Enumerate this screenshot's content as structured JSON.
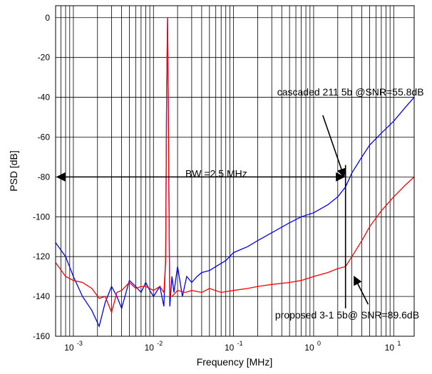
{
  "chart_data": {
    "type": "line",
    "xlabel": "Frequency [MHz]",
    "ylabel": "PSD [dB]",
    "xscale": "log",
    "xlim": [
      0.0006,
      18
    ],
    "ylim": [
      -160,
      6
    ],
    "grid": true,
    "y_ticks": [
      0,
      -20,
      -40,
      -60,
      -80,
      -100,
      -120,
      -140,
      -160
    ],
    "x_ticks": [
      {
        "value": 0.001,
        "base": "10",
        "exp": "-3"
      },
      {
        "value": 0.01,
        "base": "10",
        "exp": "-2"
      },
      {
        "value": 0.1,
        "base": "10",
        "exp": "-1"
      },
      {
        "value": 1,
        "base": "10",
        "exp": "0"
      },
      {
        "value": 10,
        "base": "10",
        "exp": "1"
      }
    ],
    "series": [
      {
        "color": "#0000ff",
        "x": [
          0.0006,
          0.0008,
          0.001,
          0.0013,
          0.0017,
          0.0021,
          0.0025,
          0.003,
          0.0035,
          0.004,
          0.005,
          0.006,
          0.007,
          0.008,
          0.009,
          0.01,
          0.012,
          0.0135,
          0.0142,
          0.0146,
          0.015,
          0.0153,
          0.0158,
          0.016,
          0.017,
          0.018,
          0.02,
          0.023,
          0.026,
          0.03,
          0.035,
          0.04,
          0.05,
          0.06,
          0.08,
          0.1,
          0.15,
          0.2,
          0.3,
          0.5,
          0.7,
          1.0,
          1.5,
          2.0,
          2.5,
          3.0,
          4.0,
          5.0,
          7.0,
          10.0,
          14.0,
          18.0
        ],
        "y": [
          -113,
          -120,
          -130,
          -140,
          -147,
          -155,
          -143,
          -135,
          -140,
          -146,
          -132,
          -135,
          -138,
          -133,
          -137,
          -140,
          -135,
          -145,
          -120,
          -40,
          0,
          -40,
          -120,
          -145,
          -130,
          -138,
          -125,
          -140,
          -130,
          -133,
          -130,
          -128,
          -127,
          -125,
          -122,
          -118,
          -115,
          -112,
          -108,
          -103,
          -100,
          -98,
          -94,
          -90,
          -85,
          -78,
          -70,
          -64,
          -58,
          -52,
          -45,
          -40
        ]
      },
      {
        "color": "#ff0000",
        "x": [
          0.0006,
          0.0008,
          0.001,
          0.0013,
          0.0017,
          0.0021,
          0.0025,
          0.003,
          0.0035,
          0.004,
          0.005,
          0.006,
          0.007,
          0.008,
          0.01,
          0.012,
          0.0135,
          0.0142,
          0.0146,
          0.015,
          0.0153,
          0.0158,
          0.016,
          0.017,
          0.02,
          0.025,
          0.03,
          0.04,
          0.05,
          0.07,
          0.1,
          0.15,
          0.2,
          0.3,
          0.5,
          0.7,
          1.0,
          1.5,
          2.0,
          2.5,
          3.0,
          4.0,
          5.0,
          7.0,
          10.0,
          14.0,
          18.0
        ],
        "y": [
          -123,
          -130,
          -132,
          -133,
          -136,
          -141,
          -140,
          -148,
          -138,
          -137,
          -133,
          -136,
          -135,
          -135,
          -137,
          -135,
          -138,
          -122,
          -40,
          0,
          -40,
          -122,
          -140,
          -140,
          -137,
          -138,
          -137,
          -138,
          -136,
          -138,
          -137,
          -136,
          -135,
          -134,
          -133,
          -132,
          -130,
          -128,
          -126,
          -125,
          -120,
          -112,
          -105,
          -97,
          -90,
          -84,
          -80
        ]
      }
    ],
    "annotations": [
      {
        "text": "cascaded 211 5b @SNR=55.8dB",
        "x": 0.35,
        "y": -39
      },
      {
        "text": "BW =2.5  MHz",
        "x": 0.025,
        "y": -80
      },
      {
        "text": "proposed 3-1 5b@ SNR=89.6dB",
        "x": 0.33,
        "y": -151
      }
    ],
    "bandwidth_marker": {
      "x": 2.5,
      "y": -80
    },
    "bw_vertical": {
      "x": 2.5,
      "y_from": -74,
      "y_to": -146
    },
    "arrows": [
      {
        "from": [
          1.3,
          -49
        ],
        "to": [
          2.4,
          -80
        ]
      },
      {
        "from": [
          4.8,
          -144
        ],
        "to": [
          3.2,
          -130
        ]
      }
    ]
  }
}
